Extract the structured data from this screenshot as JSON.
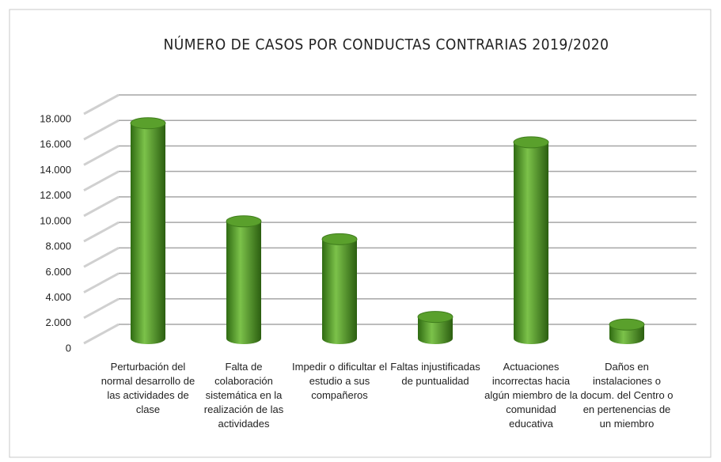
{
  "chart_data": {
    "type": "bar",
    "title": "NÚMERO DE CASOS POR CONDUCTAS CONTRARIAS 2019/2020",
    "categories": [
      "Perturbación del normal desarrollo de las actividades de clase",
      "Falta de colaboración sistemática en la realización de las actividades",
      "Impedir o dificultar el estudio a sus compañeros",
      "Faltas injustificadas de puntualidad",
      "Actuaciones incorrectas hacia algún miembro de la comunidad educativa",
      "Daños en instalaciones o docum. del Centro o en pertenencias de un miembro"
    ],
    "values": [
      16900,
      9200,
      7800,
      1700,
      15400,
      1100
    ],
    "color": "#5aa02c",
    "ylim": [
      0,
      18000
    ],
    "yticks": [
      0,
      {
        "value": 2000,
        "label": "2.000"
      },
      {
        "value": 4000,
        "label": "4.000"
      },
      {
        "value": 6000,
        "label": "6.000"
      },
      {
        "value": 8000,
        "label": "8.000"
      },
      {
        "value": 10000,
        "label": "10.000"
      },
      {
        "value": 12000,
        "label": "12.000"
      },
      {
        "value": 14000,
        "label": "14.000"
      },
      {
        "value": 16000,
        "label": "16.000"
      },
      {
        "value": 18000,
        "label": "18.000"
      }
    ],
    "grid": true
  }
}
